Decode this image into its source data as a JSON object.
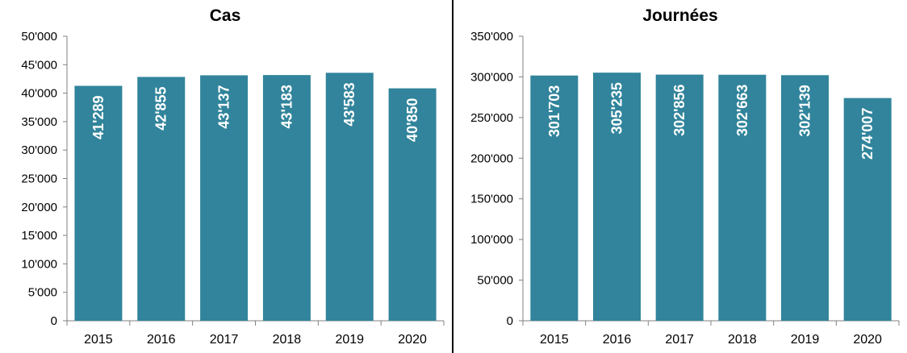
{
  "chart_data": [
    {
      "type": "bar",
      "title": "Cas",
      "categories": [
        "2015",
        "2016",
        "2017",
        "2018",
        "2019",
        "2020"
      ],
      "values": [
        41289,
        42855,
        43137,
        43183,
        43583,
        40850
      ],
      "value_labels": [
        "41'289",
        "42'855",
        "43'137",
        "43'183",
        "43'583",
        "40'850"
      ],
      "ylim": [
        0,
        50000
      ],
      "yticks": [
        "0",
        "5'000",
        "10'000",
        "15'000",
        "20'000",
        "25'000",
        "30'000",
        "35'000",
        "40'000",
        "45'000",
        "50'000"
      ],
      "ytick_step": 5000,
      "grid": false,
      "legend": "none",
      "bar_color": "#31849b"
    },
    {
      "type": "bar",
      "title": "Journées",
      "categories": [
        "2015",
        "2016",
        "2017",
        "2018",
        "2019",
        "2020"
      ],
      "values": [
        301703,
        305235,
        302856,
        302663,
        302139,
        274007
      ],
      "value_labels": [
        "301'703",
        "305'235",
        "302'856",
        "302'663",
        "302'139",
        "274'007"
      ],
      "ylim": [
        0,
        350000
      ],
      "yticks": [
        "0",
        "50'000",
        "100'000",
        "150'000",
        "200'000",
        "250'000",
        "300'000",
        "350'000"
      ],
      "ytick_step": 50000,
      "grid": false,
      "legend": "none",
      "bar_color": "#31849b"
    }
  ]
}
